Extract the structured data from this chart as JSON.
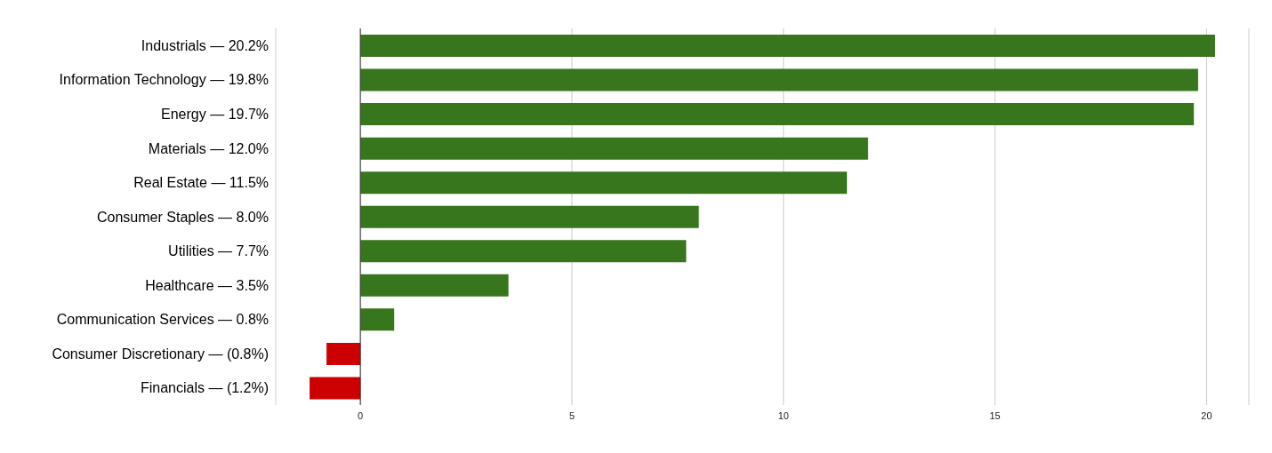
{
  "chart_data": {
    "type": "bar",
    "orientation": "horizontal",
    "categories": [
      "Industrials — 20.2%",
      "Information Technology — 19.8%",
      "Energy — 19.7%",
      "Materials — 12.0%",
      "Real Estate — 11.5%",
      "Consumer Staples — 8.0%",
      "Utilities — 7.7%",
      "Healthcare — 3.5%",
      "Communication Services — 0.8%",
      "Consumer Discretionary — (0.8%)",
      "Financials — (1.2%)"
    ],
    "values": [
      20.2,
      19.8,
      19.7,
      12.0,
      11.5,
      8.0,
      7.7,
      3.5,
      0.8,
      -0.8,
      -1.2
    ],
    "colors": [
      "#38761d",
      "#38761d",
      "#38761d",
      "#38761d",
      "#38761d",
      "#38761d",
      "#38761d",
      "#38761d",
      "#38761d",
      "#cc0000",
      "#cc0000"
    ],
    "xlim": [
      -2,
      21
    ],
    "xticks": [
      0,
      5,
      10,
      15,
      20
    ],
    "grid": "x"
  }
}
